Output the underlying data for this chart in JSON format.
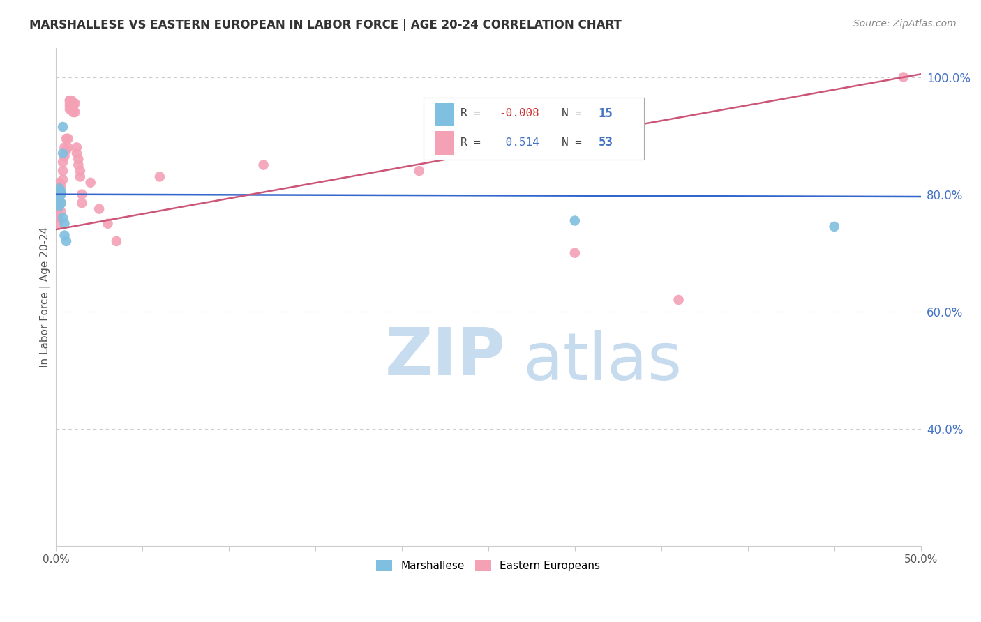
{
  "title": "MARSHALLESE VS EASTERN EUROPEAN IN LABOR FORCE | AGE 20-24 CORRELATION CHART",
  "source": "Source: ZipAtlas.com",
  "ylabel": "In Labor Force | Age 20-24",
  "xlim": [
    0.0,
    0.5
  ],
  "ylim": [
    0.2,
    1.05
  ],
  "ytick_labels_right": [
    "100.0%",
    "80.0%",
    "60.0%",
    "40.0%"
  ],
  "ytick_positions_right": [
    1.0,
    0.8,
    0.6,
    0.4
  ],
  "blue_R": "-0.008",
  "blue_N": "15",
  "pink_R": "0.514",
  "pink_N": "53",
  "blue_color": "#7fbfdf",
  "pink_color": "#f4a0b5",
  "blue_line_color": "#3366cc",
  "pink_line_color": "#cc5577",
  "blue_line_x": [
    0.0,
    0.5
  ],
  "blue_line_y": [
    0.8,
    0.796
  ],
  "pink_line_x": [
    0.0,
    0.5
  ],
  "pink_line_y": [
    0.74,
    1.005
  ],
  "marshallese_x": [
    0.002,
    0.002,
    0.002,
    0.002,
    0.003,
    0.003,
    0.003,
    0.004,
    0.004,
    0.004,
    0.005,
    0.005,
    0.006,
    0.3,
    0.45
  ],
  "marshallese_y": [
    0.81,
    0.8,
    0.79,
    0.78,
    0.805,
    0.8,
    0.785,
    0.915,
    0.87,
    0.76,
    0.75,
    0.73,
    0.72,
    0.755,
    0.745
  ],
  "eastern_x": [
    0.001,
    0.001,
    0.001,
    0.001,
    0.002,
    0.002,
    0.002,
    0.003,
    0.003,
    0.003,
    0.003,
    0.004,
    0.004,
    0.004,
    0.005,
    0.005,
    0.006,
    0.006,
    0.007,
    0.007,
    0.008,
    0.008,
    0.008,
    0.008,
    0.008,
    0.009,
    0.009,
    0.009,
    0.009,
    0.01,
    0.01,
    0.01,
    0.01,
    0.011,
    0.011,
    0.012,
    0.012,
    0.013,
    0.013,
    0.014,
    0.014,
    0.015,
    0.015,
    0.02,
    0.025,
    0.03,
    0.035,
    0.06,
    0.12,
    0.21,
    0.3,
    0.36,
    0.49
  ],
  "eastern_y": [
    0.78,
    0.77,
    0.76,
    0.75,
    0.82,
    0.805,
    0.79,
    0.815,
    0.8,
    0.785,
    0.77,
    0.855,
    0.84,
    0.825,
    0.88,
    0.865,
    0.895,
    0.875,
    0.895,
    0.88,
    0.96,
    0.96,
    0.955,
    0.95,
    0.945,
    0.96,
    0.955,
    0.95,
    0.945,
    0.955,
    0.95,
    0.945,
    0.94,
    0.955,
    0.94,
    0.88,
    0.87,
    0.86,
    0.85,
    0.84,
    0.83,
    0.8,
    0.785,
    0.82,
    0.775,
    0.75,
    0.72,
    0.83,
    0.85,
    0.84,
    0.7,
    0.62,
    1.0
  ],
  "background_color": "#ffffff",
  "grid_color": "#cccccc",
  "watermark_zip_color": "#c8dcf0",
  "watermark_atlas_color": "#b0cce8"
}
